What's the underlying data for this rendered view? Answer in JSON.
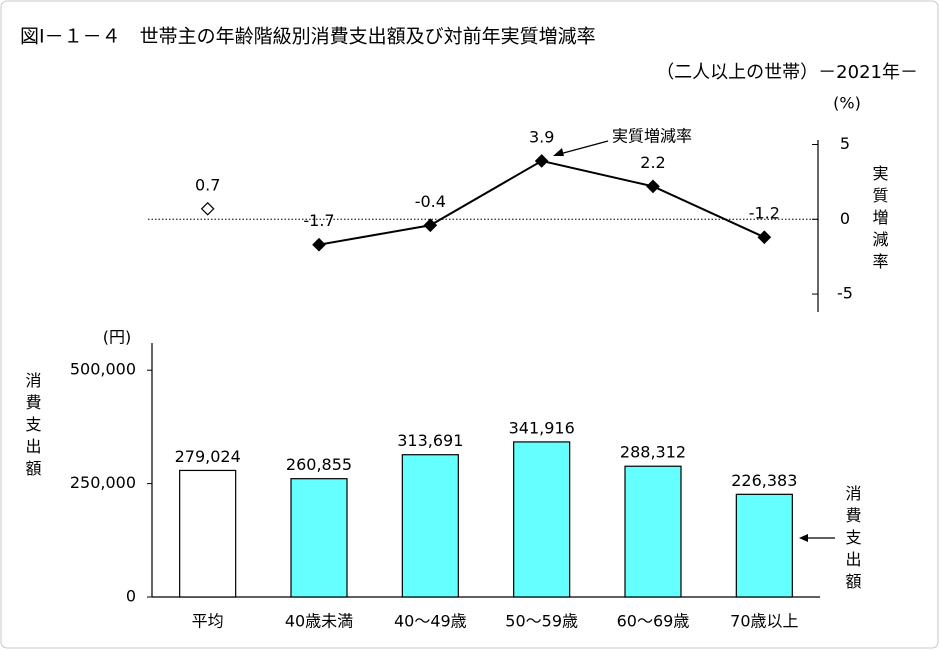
{
  "title": "図Ⅰ－１－４　世帯主の年齢階級別消費支出額及び対前年実質増減率",
  "subtitle": "（二人以上の世帯）－2021年－",
  "chart_data": [
    {
      "type": "line",
      "ylabel": "実質増減率",
      "unit": "(%)",
      "annotation": "実質増減率",
      "series": [
        {
          "color": "#000000",
          "marker": "open-diamond",
          "values": [
            0.7,
            null,
            null,
            null,
            null,
            null
          ]
        },
        {
          "color": "#000000",
          "marker": "diamond",
          "values": [
            null,
            -1.7,
            -0.4,
            3.9,
            2.2,
            -1.2
          ]
        }
      ],
      "ylim": [
        -6.2,
        5.3
      ],
      "yticks": [
        -5,
        0,
        5
      ],
      "axis_side": "right",
      "baseline": "dotted"
    },
    {
      "type": "bar",
      "ylabel": "消費支出額",
      "unit": "(円)",
      "annotation": "消費支出額",
      "categories": [
        "平均",
        "40歳未満",
        "40～49歳",
        "50～59歳",
        "60～69歳",
        "70歳以上"
      ],
      "values": [
        279024,
        260855,
        313691,
        341916,
        288312,
        226383
      ],
      "value_labels": [
        "279,024",
        "260,855",
        "313,691",
        "341,916",
        "288,312",
        "226,383"
      ],
      "colors": [
        "#ffffff",
        "#66ffff",
        "#66ffff",
        "#66ffff",
        "#66ffff",
        "#66ffff"
      ],
      "ylim": [
        0,
        560000
      ],
      "yticks": [
        0,
        {
          "value": 250000,
          "label": "250,000"
        },
        {
          "value": 500000,
          "label": "500,000"
        }
      ]
    }
  ]
}
